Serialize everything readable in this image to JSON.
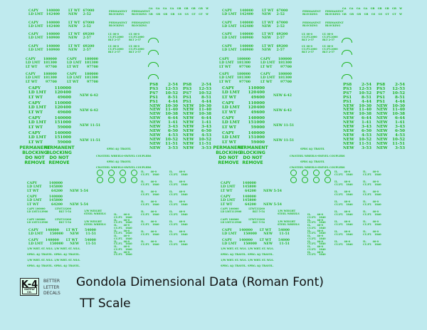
{
  "colors": {
    "background": "#bfeaee",
    "decal_ink": "#1fb51f"
  },
  "sheet": {
    "decals": [
      {
        "lines": [
          [
            "CAPY",
            "140000"
          ],
          [
            "LD LMT",
            "142400"
          ]
        ]
      },
      {
        "lines": [
          [
            "LT WT",
            "67000"
          ],
          [
            "NEW",
            "2-52"
          ]
        ]
      },
      {
        "lines": [
          [
            "CAPY",
            "140000"
          ],
          [
            "LD LMT",
            "142400"
          ]
        ]
      },
      {
        "lines": [
          [
            "LT WT",
            "67000"
          ],
          [
            "NEW",
            "2-52"
          ]
        ]
      },
      {
        "lines": [
          [
            "CAPY",
            "140000"
          ],
          [
            "LD LMT",
            "140900"
          ]
        ]
      },
      {
        "lines": [
          [
            "LT WT",
            "69200"
          ],
          [
            "NEW",
            "2-57"
          ]
        ]
      },
      {
        "lines": [
          [
            "CAPY",
            "140000"
          ],
          [
            "LD LMT",
            "140900"
          ]
        ]
      },
      {
        "lines": [
          [
            "LT WT",
            "69200"
          ],
          [
            "NEW",
            "2-57"
          ]
        ]
      },
      {
        "lines": [
          [
            "CAPY",
            "180000"
          ],
          [
            "LD LMT",
            "181300"
          ],
          [
            "LT WT",
            "97700"
          ]
        ]
      },
      {
        "lines": [
          [
            "CAPY",
            "180000"
          ],
          [
            "LD LMT",
            "181300"
          ],
          [
            "LT WT",
            "97700"
          ]
        ]
      },
      {
        "lines": [
          [
            "CAPY",
            "180000"
          ],
          [
            "LD LMT",
            "181300"
          ],
          [
            "LT WT",
            "97700"
          ]
        ]
      },
      {
        "lines": [
          [
            "CAPY",
            "180000"
          ],
          [
            "LD LMT",
            "181300"
          ],
          [
            "LT WT",
            "97700"
          ]
        ]
      },
      {
        "lines": [
          [
            "CAPY",
            "110000"
          ],
          [
            "LD LMT",
            "120400"
          ],
          [
            "LT WT",
            "49600"
          ]
        ]
      },
      {
        "lines": [
          [
            "NEW 6-42"
          ]
        ]
      },
      {
        "lines": [
          [
            "CAPY",
            "110000"
          ],
          [
            "LD LMT",
            "120400"
          ],
          [
            "LT WT",
            "49600"
          ]
        ]
      },
      {
        "lines": [
          [
            "NEW 6-42"
          ]
        ]
      },
      {
        "lines": [
          [
            "CAPY",
            "140000"
          ],
          [
            "LD LMT",
            "151000"
          ],
          [
            "LT WT",
            "59000"
          ]
        ]
      },
      {
        "lines": [
          [
            "NEW 11-51"
          ]
        ]
      },
      {
        "lines": [
          [
            "CAPY",
            "140000"
          ],
          [
            "LD LMT",
            "151000"
          ],
          [
            "LT WT",
            "59000"
          ]
        ]
      },
      {
        "lines": [
          [
            "NEW 11-51"
          ]
        ]
      },
      {
        "lines": [
          [
            "PERMANENT"
          ],
          [
            "BLOCKING"
          ],
          [
            "DO NOT"
          ],
          [
            "REMOVE"
          ]
        ]
      },
      {
        "lines": [
          [
            "PERMANENT"
          ],
          [
            "BLOCKING"
          ],
          [
            "DO NOT"
          ],
          [
            "REMOVE"
          ]
        ]
      },
      {
        "lines": [
          [
            "CAPY",
            "140000"
          ],
          [
            "LD LMT",
            "145800"
          ],
          [
            "LT WT",
            "64200"
          ]
        ]
      },
      {
        "lines": [
          [
            "NEW 5-54"
          ]
        ]
      },
      {
        "lines": [
          [
            "CAPY",
            "140000"
          ],
          [
            "LD LMT",
            "145800"
          ],
          [
            "LT WT",
            "64200"
          ]
        ]
      },
      {
        "lines": [
          [
            "NEW 5-54"
          ]
        ]
      },
      {
        "lines": [
          [
            "CAPY 100000",
            "LTWT33200"
          ],
          [
            "LD LMT113900",
            "BLT 5-54"
          ]
        ]
      },
      {
        "lines": [
          [
            "CAPY 100000",
            "LTWT33200"
          ],
          [
            "LD LMT113900",
            "BLT 5-54"
          ]
        ]
      },
      {
        "lines": [
          [
            "CAPY",
            "140000",
            "LT WT",
            "54000"
          ],
          [
            "LD LMT",
            "150000",
            "NEW",
            "11-51"
          ]
        ]
      },
      {
        "lines": [
          [
            "CAPY",
            "140000",
            "LT WT",
            "54000"
          ],
          [
            "LD LMT",
            "150000",
            "NEW",
            "11-51"
          ]
        ]
      },
      {
        "lines": [
          [
            "1/W WHT. ST. WLS."
          ]
        ]
      },
      {
        "lines": [
          [
            "1/W WHT. ST. WLS."
          ]
        ]
      },
      {
        "lines": [
          [
            "SPRG. 4@ TRAVEL."
          ]
        ]
      },
      {
        "lines": [
          [
            "SPRG. 4@ TRAVEL."
          ]
        ]
      },
      {
        "lines": [
          [
            "1/W WHT. ST. WLS."
          ]
        ]
      },
      {
        "lines": [
          [
            "1/W WHT. ST. WLS."
          ]
        ]
      },
      {
        "lines": [
          [
            "SPRG. 4@ TRAVEL."
          ]
        ]
      },
      {
        "lines": [
          [
            "SPRG. 4@ TRAVEL."
          ]
        ]
      },
      {
        "lines": [
          [
            "PERMANENT"
          ],
          [
            "BLOCKING"
          ]
        ]
      },
      {
        "lines": [
          [
            "PERMANENT"
          ],
          [
            "BLOCKING"
          ]
        ]
      },
      {
        "lines": [
          [
            "PERMANENT"
          ],
          [
            "BLOCKING"
          ]
        ]
      },
      {
        "lines": [
          [
            "PERMANENT"
          ],
          [
            "BLOCKING"
          ]
        ]
      },
      {
        "lines": [
          [
            "LT. 00-0"
          ],
          [
            "CU.FT.2000"
          ],
          [
            "BLT 2-57"
          ]
        ]
      },
      {
        "lines": [
          [
            "LT. 00-0"
          ],
          [
            "CU.FT.2000"
          ],
          [
            "BLT 2-57"
          ]
        ]
      },
      {
        "lines": [
          [
            "LT. 00-0"
          ],
          [
            "CU.FT.2000"
          ],
          [
            "BLT 2-57"
          ]
        ]
      },
      {
        "lines": [
          [
            "LT. 00-0"
          ],
          [
            "CU.FT.2000"
          ],
          [
            "BLT 2-57"
          ]
        ]
      },
      {
        "lines": [
          [
            "GA",
            "GA",
            "GA",
            "GA",
            "GB",
            "GB",
            "GB",
            "GB",
            "W"
          ]
        ]
      },
      {
        "lines": [
          [
            "GB",
            "GB",
            "GB",
            "GB",
            "GS",
            "GS",
            "GT",
            "GT",
            "W"
          ]
        ]
      },
      {
        "lines": [
          [
            "SPRG 4@ TRAVEL"
          ]
        ]
      },
      {
        "lines": [
          [
            "CW.STEEL WHEELS-SWIVEL COUPLERS"
          ]
        ]
      },
      {
        "lines": [
          [
            "SPRG 4@ TRAVEL"
          ]
        ]
      },
      {
        "lines": [
          [
            "CW.STEEL WHEELS-SWIVEL COUPLERS"
          ]
        ]
      },
      {
        "lines": [
          [
            "1/W WEIGHT"
          ],
          [
            "STEEL WHEELS"
          ]
        ]
      },
      {
        "lines": [
          [
            "1/W WEIGHT"
          ],
          [
            "STEEL WHEELS"
          ]
        ]
      }
    ],
    "reweigh_list": [
      [
        "PS8",
        "2-54"
      ],
      [
        "PS3",
        "12-53"
      ],
      [
        "PS7",
        "10-52"
      ],
      [
        "PS1",
        "8-51"
      ],
      [
        "PS1",
        "4-44"
      ],
      [
        "NEW",
        "10-30"
      ],
      [
        "NEW",
        "11-40"
      ],
      [
        "NEW",
        "10-38"
      ],
      [
        "NEW",
        "6-44"
      ],
      [
        "NEW",
        "1-41"
      ],
      [
        "NEW",
        "3-43"
      ],
      [
        "NEW",
        "6-50"
      ],
      [
        "NEW",
        "4-53"
      ],
      [
        "NEW",
        "10-52"
      ],
      [
        "NEW",
        "11-51"
      ],
      [
        "NEW",
        "3-53"
      ]
    ],
    "capacity_list": [
      [
        "IL.",
        "46-0",
        "CU.FT.",
        "1840"
      ],
      [
        "IL.",
        "46-0",
        "CU.FT.",
        "1840"
      ],
      [
        "IL.",
        "46-0",
        "CU.FT.",
        "1840"
      ],
      [
        "IL.",
        "46-0",
        "CU.FT.",
        "1840"
      ],
      [
        "IL.",
        "46-0",
        "CU.FT.",
        "1840"
      ],
      [
        "IL.",
        "46-0",
        "CU.FT.",
        "1840"
      ],
      [
        "IL.",
        "46-0",
        "CU.FT.",
        "1840"
      ],
      [
        "IL.",
        "46-0",
        "CU.FT.",
        "1840"
      ]
    ]
  },
  "footer": {
    "logo_text": "K-4",
    "logo_subtext": "SUPPLY CO.",
    "tagline": [
      "BETTER",
      "LETTER",
      "DECALS"
    ],
    "title": "Gondola Dimensional Data (Roman Font)",
    "subtitle": "TT Scale"
  }
}
